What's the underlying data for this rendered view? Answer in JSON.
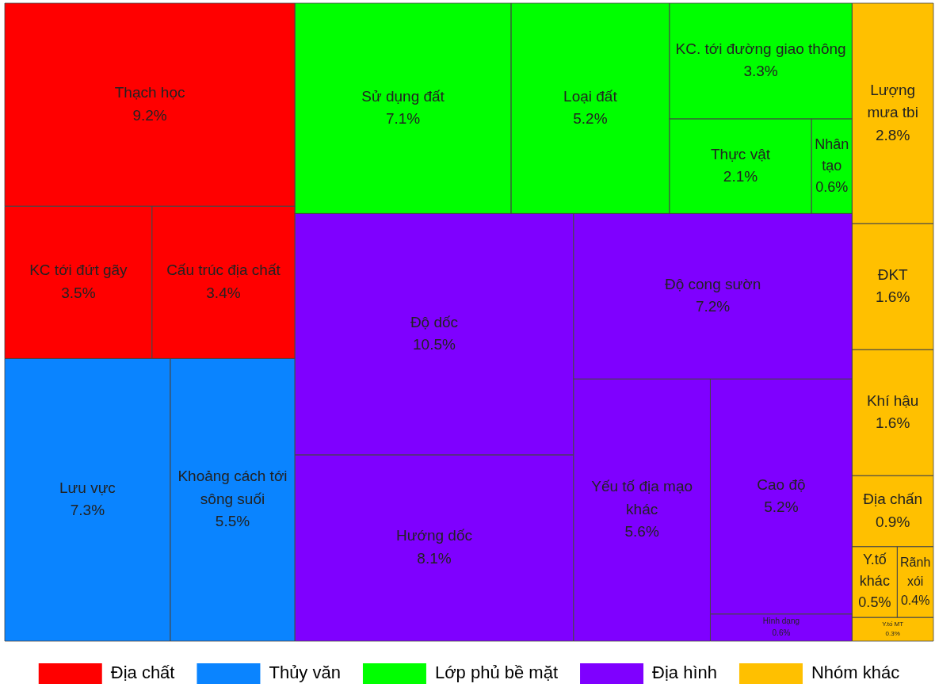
{
  "chart_data": {
    "type": "other",
    "legend": "bottom",
    "categories": [
      "Thạch học",
      "KC tới đứt gãy",
      "Cấu trúc địa chất",
      "Lưu vực",
      "Khoảng cách tới sông suối",
      "Sử dụng đất",
      "Loại đất",
      "KC. tới đường giao thông",
      "Thực vật",
      "Nhân tạo",
      "Độ dốc",
      "Hướng dốc",
      "Độ cong sườn",
      "Yếu tố địa mạo khác",
      "Cao độ",
      "Hình dạng",
      "Lượng mưa tbi",
      "ĐKT",
      "Khí hậu",
      "Địa chấn",
      "Y.tố khác",
      "Rãnh xói",
      "Y.tố MT"
    ],
    "series": [
      {
        "name": "Địa chất",
        "color": "#ff0000",
        "values": [
          9.2,
          3.5,
          3.4,
          null,
          null,
          null,
          null,
          null,
          null,
          null,
          null,
          null,
          null,
          null,
          null,
          null,
          null,
          null,
          null,
          null,
          null,
          null,
          null
        ],
        "value_labels": [
          "9.2%",
          "3.5%",
          "3.4%",
          null,
          null,
          null,
          null,
          null,
          null,
          null,
          null,
          null,
          null,
          null,
          null,
          null,
          null,
          null,
          null,
          null,
          null,
          null,
          null
        ]
      },
      {
        "name": "Thủy văn",
        "color": "#0a84ff",
        "values": [
          null,
          null,
          null,
          7.3,
          5.5,
          null,
          null,
          null,
          null,
          null,
          null,
          null,
          null,
          null,
          null,
          null,
          null,
          null,
          null,
          null,
          null,
          null,
          null
        ],
        "value_labels": [
          null,
          null,
          null,
          "7.3%",
          "5.5%",
          null,
          null,
          null,
          null,
          null,
          null,
          null,
          null,
          null,
          null,
          null,
          null,
          null,
          null,
          null,
          null,
          null,
          null
        ]
      },
      {
        "name": "Lớp phủ bề mặt",
        "color": "#00ff00",
        "values": [
          null,
          null,
          null,
          null,
          null,
          7.1,
          5.2,
          3.3,
          2.1,
          0.6,
          null,
          null,
          null,
          null,
          null,
          null,
          null,
          null,
          null,
          null,
          null,
          null,
          null
        ],
        "value_labels": [
          null,
          null,
          null,
          null,
          null,
          "7.1%",
          "5.2%",
          "3.3%",
          "2.1%",
          "0.6%",
          null,
          null,
          null,
          null,
          null,
          null,
          null,
          null,
          null,
          null,
          null,
          null,
          null
        ]
      },
      {
        "name": "Địa hình",
        "color": "#7f00ff",
        "values": [
          null,
          null,
          null,
          null,
          null,
          null,
          null,
          null,
          null,
          null,
          10.5,
          8.1,
          7.2,
          5.6,
          5.2,
          0.6,
          null,
          null,
          null,
          null,
          null,
          null,
          null
        ],
        "value_labels": [
          null,
          null,
          null,
          null,
          null,
          null,
          null,
          null,
          null,
          null,
          "10.5%",
          "8.1%",
          "7.2%",
          "5.6%",
          "5.2%",
          "0.6%",
          null,
          null,
          null,
          null,
          null,
          null,
          null
        ]
      },
      {
        "name": "Nhóm khác",
        "color": "#ffc000",
        "values": [
          null,
          null,
          null,
          null,
          null,
          null,
          null,
          null,
          null,
          null,
          null,
          null,
          null,
          null,
          null,
          null,
          2.8,
          1.6,
          1.6,
          0.9,
          0.5,
          0.4,
          0.3
        ],
        "value_labels": [
          null,
          null,
          null,
          null,
          null,
          null,
          null,
          null,
          null,
          null,
          null,
          null,
          null,
          null,
          null,
          null,
          "2.8%",
          "1.6%",
          "1.6%",
          "0.9%",
          "0.5%",
          "0.4%",
          "0.3%"
        ]
      }
    ]
  }
}
